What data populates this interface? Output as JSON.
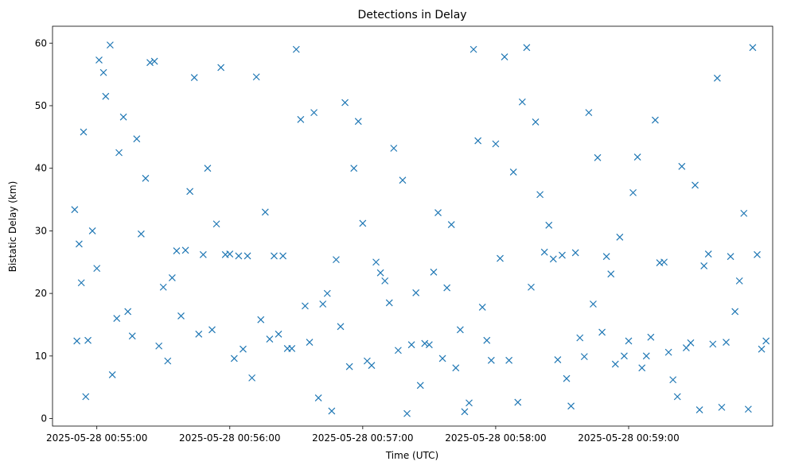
{
  "chart_data": {
    "type": "scatter",
    "title": "Detections in Delay",
    "xlabel": "Time (UTC)",
    "ylabel": "Bistatic Delay (km)",
    "marker": "x",
    "color": "#1f77b4",
    "x_ticks": [
      "2025-05-28 00:55:00",
      "2025-05-28 00:56:00",
      "2025-05-28 00:57:00",
      "2025-05-28 00:58:00",
      "2025-05-28 00:59:00"
    ],
    "y_ticks": [
      0,
      10,
      20,
      30,
      40,
      50,
      60
    ],
    "xlim": [
      "2025-05-28 00:54:40",
      "2025-05-28 01:00:05"
    ],
    "ylim": [
      -1.2,
      62.7
    ],
    "series": [
      {
        "x": [
          "2025-05-28 00:54:50",
          "2025-05-28 00:54:51",
          "2025-05-28 00:54:52",
          "2025-05-28 00:54:53",
          "2025-05-28 00:54:54",
          "2025-05-28 00:54:55",
          "2025-05-28 00:54:56",
          "2025-05-28 00:54:58",
          "2025-05-28 00:55:00",
          "2025-05-28 00:55:01",
          "2025-05-28 00:55:03",
          "2025-05-28 00:55:04",
          "2025-05-28 00:55:06",
          "2025-05-28 00:55:07",
          "2025-05-28 00:55:09",
          "2025-05-28 00:55:10",
          "2025-05-28 00:55:12",
          "2025-05-28 00:55:14",
          "2025-05-28 00:55:16",
          "2025-05-28 00:55:18",
          "2025-05-28 00:55:20",
          "2025-05-28 00:55:22",
          "2025-05-28 00:55:24",
          "2025-05-28 00:55:26",
          "2025-05-28 00:55:28",
          "2025-05-28 00:55:30",
          "2025-05-28 00:55:32",
          "2025-05-28 00:55:34",
          "2025-05-28 00:55:36",
          "2025-05-28 00:55:38",
          "2025-05-28 00:55:40",
          "2025-05-28 00:55:42",
          "2025-05-28 00:55:44",
          "2025-05-28 00:55:46",
          "2025-05-28 00:55:48",
          "2025-05-28 00:55:50",
          "2025-05-28 00:55:52",
          "2025-05-28 00:55:54",
          "2025-05-28 00:55:56",
          "2025-05-28 00:55:58",
          "2025-05-28 00:56:00",
          "2025-05-28 00:56:02",
          "2025-05-28 00:56:04",
          "2025-05-28 00:56:06",
          "2025-05-28 00:56:08",
          "2025-05-28 00:56:10",
          "2025-05-28 00:56:12",
          "2025-05-28 00:56:14",
          "2025-05-28 00:56:16",
          "2025-05-28 00:56:18",
          "2025-05-28 00:56:20",
          "2025-05-28 00:56:22",
          "2025-05-28 00:56:24",
          "2025-05-28 00:56:26",
          "2025-05-28 00:56:28",
          "2025-05-28 00:56:30",
          "2025-05-28 00:56:32",
          "2025-05-28 00:56:34",
          "2025-05-28 00:56:36",
          "2025-05-28 00:56:38",
          "2025-05-28 00:56:40",
          "2025-05-28 00:56:42",
          "2025-05-28 00:56:44",
          "2025-05-28 00:56:46",
          "2025-05-28 00:56:48",
          "2025-05-28 00:56:50",
          "2025-05-28 00:56:52",
          "2025-05-28 00:56:54",
          "2025-05-28 00:56:56",
          "2025-05-28 00:56:58",
          "2025-05-28 00:57:00",
          "2025-05-28 00:57:02",
          "2025-05-28 00:57:04",
          "2025-05-28 00:57:06",
          "2025-05-28 00:57:08",
          "2025-05-28 00:57:10",
          "2025-05-28 00:57:12",
          "2025-05-28 00:57:14",
          "2025-05-28 00:57:16",
          "2025-05-28 00:57:18",
          "2025-05-28 00:57:20",
          "2025-05-28 00:57:22",
          "2025-05-28 00:57:24",
          "2025-05-28 00:57:26",
          "2025-05-28 00:57:28",
          "2025-05-28 00:57:30",
          "2025-05-28 00:57:32",
          "2025-05-28 00:57:34",
          "2025-05-28 00:57:36",
          "2025-05-28 00:57:38",
          "2025-05-28 00:57:40",
          "2025-05-28 00:57:42",
          "2025-05-28 00:57:44",
          "2025-05-28 00:57:46",
          "2025-05-28 00:57:48",
          "2025-05-28 00:57:50",
          "2025-05-28 00:57:52",
          "2025-05-28 00:57:54",
          "2025-05-28 00:57:56",
          "2025-05-28 00:57:58",
          "2025-05-28 00:58:00",
          "2025-05-28 00:58:02",
          "2025-05-28 00:58:04",
          "2025-05-28 00:58:06",
          "2025-05-28 00:58:08",
          "2025-05-28 00:58:10",
          "2025-05-28 00:58:12",
          "2025-05-28 00:58:14",
          "2025-05-28 00:58:16",
          "2025-05-28 00:58:18",
          "2025-05-28 00:58:20",
          "2025-05-28 00:58:22",
          "2025-05-28 00:58:24",
          "2025-05-28 00:58:26",
          "2025-05-28 00:58:28",
          "2025-05-28 00:58:30",
          "2025-05-28 00:58:32",
          "2025-05-28 00:58:34",
          "2025-05-28 00:58:36",
          "2025-05-28 00:58:38",
          "2025-05-28 00:58:40",
          "2025-05-28 00:58:42",
          "2025-05-28 00:58:44",
          "2025-05-28 00:58:46",
          "2025-05-28 00:58:48",
          "2025-05-28 00:58:50",
          "2025-05-28 00:58:52",
          "2025-05-28 00:58:54",
          "2025-05-28 00:58:56",
          "2025-05-28 00:58:58",
          "2025-05-28 00:59:00",
          "2025-05-28 00:59:02",
          "2025-05-28 00:59:04",
          "2025-05-28 00:59:06",
          "2025-05-28 00:59:08",
          "2025-05-28 00:59:10",
          "2025-05-28 00:59:12",
          "2025-05-28 00:59:14",
          "2025-05-28 00:59:16",
          "2025-05-28 00:59:18",
          "2025-05-28 00:59:20",
          "2025-05-28 00:59:22",
          "2025-05-28 00:59:24",
          "2025-05-28 00:59:26",
          "2025-05-28 00:59:28",
          "2025-05-28 00:59:30",
          "2025-05-28 00:59:32",
          "2025-05-28 00:59:34",
          "2025-05-28 00:59:36",
          "2025-05-28 00:59:38",
          "2025-05-28 00:59:40",
          "2025-05-28 00:59:42",
          "2025-05-28 00:59:44",
          "2025-05-28 00:59:46",
          "2025-05-28 00:59:48",
          "2025-05-28 00:59:50",
          "2025-05-28 00:59:52",
          "2025-05-28 00:59:54",
          "2025-05-28 00:59:56",
          "2025-05-28 00:59:58",
          "2025-05-28 01:00:00",
          "2025-05-28 01:00:02"
        ],
        "y": [
          33.4,
          12.4,
          27.9,
          21.7,
          45.8,
          3.5,
          12.5,
          30.0,
          24.0,
          57.3,
          55.3,
          51.5,
          59.7,
          7.0,
          16.0,
          42.5,
          48.2,
          17.1,
          13.2,
          44.7,
          29.5,
          38.4,
          56.9,
          57.1,
          11.6,
          21.0,
          9.2,
          22.5,
          26.8,
          16.4,
          26.9,
          36.3,
          54.5,
          13.5,
          26.2,
          40.0,
          14.2,
          31.1,
          56.1,
          26.2,
          26.3,
          9.6,
          26.0,
          11.1,
          26.0,
          6.5,
          54.6,
          15.8,
          33.0,
          12.7,
          26.0,
          13.5,
          26.0,
          11.2,
          11.2,
          59.0,
          47.8,
          18.0,
          12.2,
          48.9,
          3.3,
          18.3,
          20.0,
          1.2,
          25.4,
          14.7,
          50.5,
          8.3,
          40.0,
          47.5,
          31.2,
          9.2,
          8.5,
          25.0,
          23.3,
          22.0,
          18.5,
          43.2,
          10.9,
          38.1,
          0.8,
          11.8,
          20.1,
          5.3,
          12.0,
          11.8,
          23.4,
          32.9,
          9.6,
          20.9,
          31.0,
          8.1,
          14.2,
          1.1,
          2.5,
          59.0,
          44.4,
          17.8,
          12.5,
          9.3,
          43.9,
          25.6,
          57.8,
          9.3,
          39.4,
          2.6,
          50.6,
          59.3,
          21.0,
          47.4,
          35.8,
          26.6,
          30.9,
          25.5,
          9.4,
          26.1,
          6.4,
          2.0,
          26.5,
          12.9,
          9.9,
          48.9,
          18.3,
          41.7,
          13.8,
          25.9,
          23.1,
          8.7,
          29.0,
          10.0,
          12.4,
          36.1,
          41.8,
          8.1,
          10.0,
          13.0,
          47.7,
          24.9,
          25.0,
          10.6,
          6.2,
          3.5,
          40.3,
          11.3,
          12.1,
          37.3,
          1.4,
          24.4,
          26.3,
          11.9,
          54.4,
          1.8,
          12.2,
          25.9,
          17.1,
          22.0,
          32.8,
          1.5,
          59.3,
          26.2,
          11.1,
          12.4
        ],
        "markers": "x"
      }
    ]
  }
}
